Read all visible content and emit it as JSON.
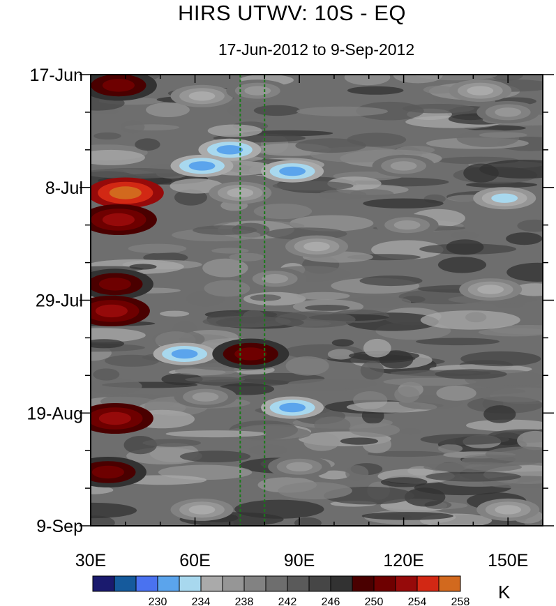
{
  "chart_data": {
    "type": "heatmap",
    "title": "HIRS UTWV: 10S - EQ",
    "subtitle": "17-Jun-2012 to 9-Sep-2012",
    "x_axis": {
      "range": [
        30,
        160
      ],
      "ticks": [
        30,
        60,
        90,
        120,
        150
      ],
      "tick_labels": [
        "30E",
        "60E",
        "90E",
        "120E",
        "150E"
      ]
    },
    "y_axis": {
      "range": [
        "2012-06-17",
        "2012-09-09"
      ],
      "ticks": [
        "2012-06-17",
        "2012-07-08",
        "2012-07-29",
        "2012-08-19",
        "2012-09-09"
      ],
      "tick_labels": [
        "17-Jun",
        "8-Jul",
        "29-Jul",
        "19-Aug",
        "9-Sep"
      ],
      "inverted": true
    },
    "reference_lines_x": [
      73,
      80
    ],
    "colorbar": {
      "units": "K",
      "colors": [
        "#1a1a6e",
        "#155a9c",
        "#4a72f0",
        "#5ba4ec",
        "#a8d8ee",
        "#aaaaaa",
        "#969696",
        "#828282",
        "#6e6e6e",
        "#5a5a5a",
        "#464646",
        "#323232",
        "#4a0000",
        "#6e0000",
        "#960a0a",
        "#d22814",
        "#d2691e"
      ],
      "labels": [
        "230",
        "234",
        "238",
        "242",
        "246",
        "250",
        "254",
        "258"
      ],
      "label_positions": [
        3,
        5,
        7,
        9,
        11,
        13,
        15,
        17
      ]
    },
    "features": [
      {
        "lon": 62,
        "date": "2012-06-21",
        "value": 236
      },
      {
        "lon": 78,
        "date": "2012-06-20",
        "value": 238
      },
      {
        "lon": 70,
        "date": "2012-07-01",
        "value": 232
      },
      {
        "lon": 62,
        "date": "2012-07-04",
        "value": 233
      },
      {
        "lon": 88,
        "date": "2012-07-05",
        "value": 233
      },
      {
        "lon": 73,
        "date": "2012-07-09",
        "value": 236
      },
      {
        "lon": 95,
        "date": "2012-07-19",
        "value": 236
      },
      {
        "lon": 83,
        "date": "2012-07-25",
        "value": 238
      },
      {
        "lon": 57,
        "date": "2012-08-08",
        "value": 233
      },
      {
        "lon": 88,
        "date": "2012-08-18",
        "value": 233
      },
      {
        "lon": 63,
        "date": "2012-08-16",
        "value": 238
      },
      {
        "lon": 90,
        "date": "2012-08-29",
        "value": 238
      },
      {
        "lon": 62,
        "date": "2012-09-06",
        "value": 236
      },
      {
        "lon": 142,
        "date": "2012-06-20",
        "value": 236
      },
      {
        "lon": 150,
        "date": "2012-06-24",
        "value": 238
      },
      {
        "lon": 149,
        "date": "2012-07-10",
        "value": 235
      },
      {
        "lon": 121,
        "date": "2012-07-15",
        "value": 238
      },
      {
        "lon": 145,
        "date": "2012-07-27",
        "value": 236
      },
      {
        "lon": 150,
        "date": "2012-09-06",
        "value": 236
      },
      {
        "lon": 120,
        "date": "2012-07-04",
        "value": 238
      },
      {
        "lon": 40,
        "date": "2012-07-09",
        "value": 258
      },
      {
        "lon": 38,
        "date": "2012-07-14",
        "value": 255
      },
      {
        "lon": 37,
        "date": "2012-07-26",
        "value": 253
      },
      {
        "lon": 36,
        "date": "2012-07-31",
        "value": 254
      },
      {
        "lon": 37,
        "date": "2012-08-20",
        "value": 254
      },
      {
        "lon": 38,
        "date": "2012-06-19",
        "value": 253
      },
      {
        "lon": 76,
        "date": "2012-08-08",
        "value": 253
      },
      {
        "lon": 35,
        "date": "2012-08-30",
        "value": 253
      }
    ]
  },
  "units_label": "K"
}
